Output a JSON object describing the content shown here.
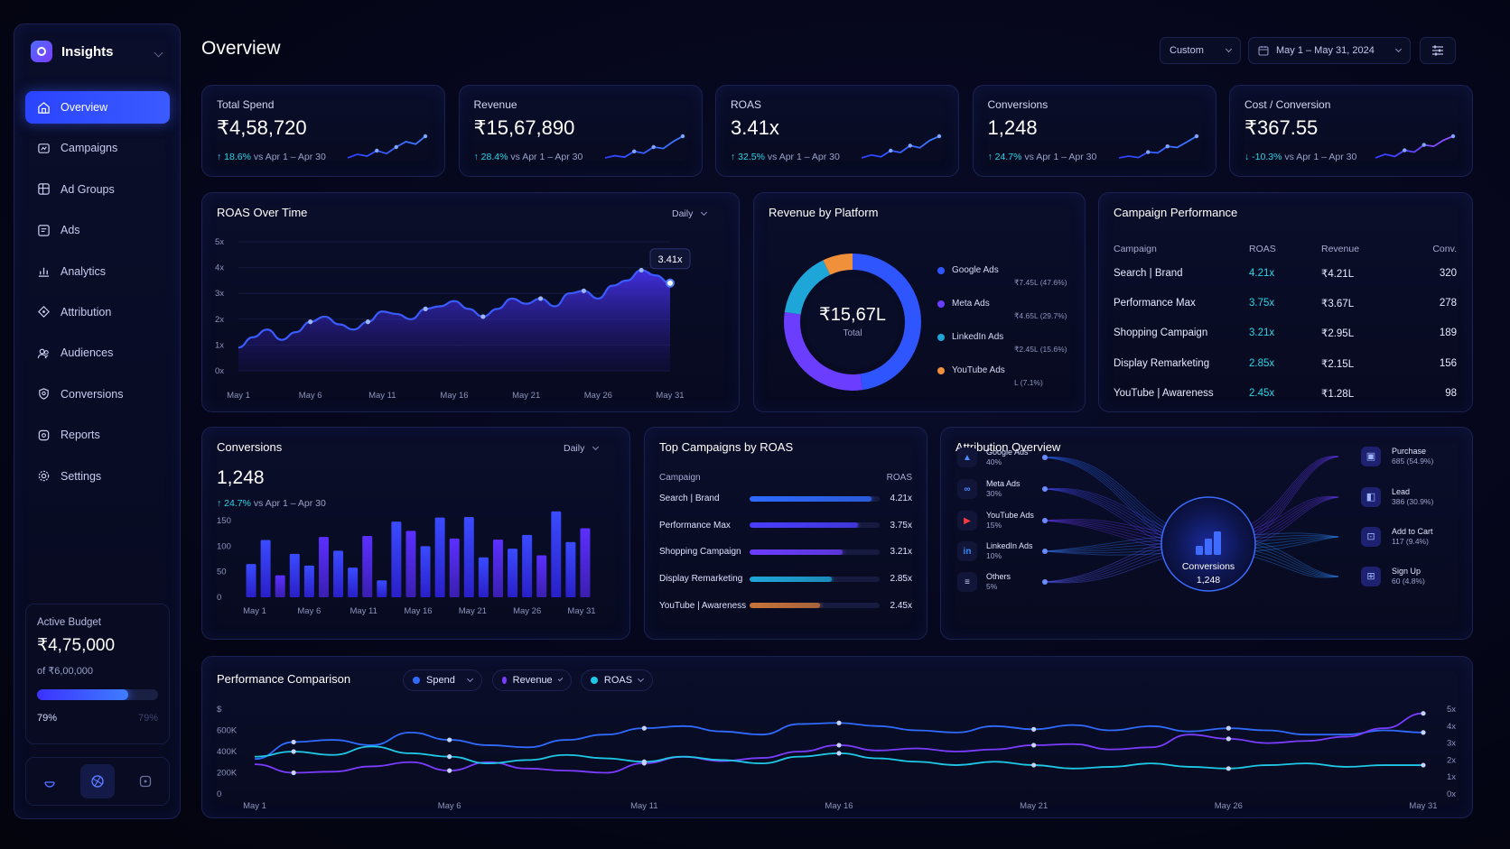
{
  "app": {
    "name": "Insights",
    "page_title": "Overview"
  },
  "sidebar": {
    "items": [
      {
        "label": "Overview",
        "icon": "home-icon",
        "active": true
      },
      {
        "label": "Campaigns",
        "icon": "campaigns-icon"
      },
      {
        "label": "Ad Groups",
        "icon": "ad-groups-icon"
      },
      {
        "label": "Ads",
        "icon": "ads-icon"
      },
      {
        "label": "Analytics",
        "icon": "analytics-icon"
      },
      {
        "label": "Attribution",
        "icon": "attribution-icon"
      },
      {
        "label": "Audiences",
        "icon": "audiences-icon"
      },
      {
        "label": "Conversions",
        "icon": "conversions-icon"
      },
      {
        "label": "Reports",
        "icon": "reports-icon"
      },
      {
        "label": "Settings",
        "icon": "gear-icon"
      }
    ],
    "budget": {
      "label": "Active Budget",
      "value": "₹4,75,000",
      "of": "of ₹6,00,000",
      "percent_text": "79%",
      "percent": 0.79,
      "right_text": "79%"
    }
  },
  "header": {
    "range_preset": "Custom",
    "date_range": "May 1 – May 31, 2024"
  },
  "kpis": [
    {
      "title": "Total Spend",
      "value": "₹4,58,720",
      "delta": "18.6%",
      "arrow": "↑",
      "compare": "vs Apr 1 – Apr 30",
      "spark": [
        2,
        3,
        2.5,
        4,
        3.2,
        5,
        6.5,
        5.8,
        8
      ]
    },
    {
      "title": "Revenue",
      "value": "₹15,67,890",
      "delta": "28.4%",
      "arrow": "↑",
      "compare": "vs Apr 1 – Apr 30",
      "spark": [
        2,
        2.6,
        2.2,
        3.8,
        3.3,
        5,
        4.6,
        6.5,
        8
      ]
    },
    {
      "title": "ROAS",
      "value": "3.41x",
      "delta": "32.5%",
      "arrow": "↑",
      "compare": "vs Apr 1 – Apr 30",
      "spark": [
        2,
        2.8,
        2.3,
        4,
        3.5,
        5.4,
        4.8,
        6.8,
        8
      ]
    },
    {
      "title": "Conversions",
      "value": "1,248",
      "delta": "24.7%",
      "arrow": "↑",
      "compare": "vs Apr 1 – Apr 30",
      "spark": [
        2,
        2.5,
        2.1,
        3.6,
        3.4,
        5.2,
        4.9,
        6.4,
        8
      ]
    },
    {
      "title": "Cost / Conversion",
      "value": "₹367.55",
      "delta": "-10.3%",
      "arrow": "↓",
      "compare": "vs Apr 1 – Apr 30",
      "spark": [
        2,
        3,
        2.4,
        4.1,
        3.6,
        5.6,
        5.2,
        6.9,
        8
      ]
    }
  ],
  "roas_chart": {
    "title": "ROAS Over Time",
    "granularity": "Daily",
    "callout": "3.41x"
  },
  "revenue_platform": {
    "title": "Revenue by Platform",
    "total": "₹15,67L",
    "total_label": "Total",
    "platforms": [
      {
        "name": "Google Ads",
        "value": "₹7.45L (47.6%)",
        "color": "#2f55ff",
        "share": 47.6
      },
      {
        "name": "Meta Ads",
        "value": "₹4.65L (29.7%)",
        "color": "#6b3dff",
        "share": 29.7
      },
      {
        "name": "LinkedIn Ads",
        "value": "₹2.45L (15.6%)",
        "color": "#1ea6d8",
        "share": 15.6
      },
      {
        "name": "YouTube Ads",
        "value": "L (7.1%)",
        "color": "#f0903a",
        "share": 7.1
      }
    ]
  },
  "campaign_performance": {
    "title": "Campaign Performance",
    "headers": [
      "Campaign",
      "ROAS",
      "Revenue",
      "Conv."
    ],
    "rows": [
      [
        "Search | Brand",
        "4.21x",
        "₹4.21L",
        "320"
      ],
      [
        "Performance Max",
        "3.75x",
        "₹3.67L",
        "278"
      ],
      [
        "Shopping Campaign",
        "3.21x",
        "₹2.95L",
        "189"
      ],
      [
        "Display Remarketing",
        "2.85x",
        "₹2.15L",
        "156"
      ],
      [
        "YouTube | Awareness",
        "2.45x",
        "₹1.28L",
        "98"
      ]
    ]
  },
  "conversions": {
    "title": "Conversions",
    "granularity": "Daily",
    "value": "1,248",
    "delta": "24.7%",
    "arrow": "↑",
    "compare": "vs Apr 1 – Apr 30"
  },
  "top_campaigns": {
    "title": "Top Campaigns by ROAS",
    "col1": "Campaign",
    "col2": "ROAS",
    "rows": [
      {
        "name": "Search | Brand",
        "roas": "4.21x",
        "value": 4.21,
        "color": "#2f6bff"
      },
      {
        "name": "Performance Max",
        "roas": "3.75x",
        "value": 3.75,
        "color": "#4a3dff"
      },
      {
        "name": "Shopping Campaign",
        "roas": "3.21x",
        "value": 3.21,
        "color": "#6b3dff"
      },
      {
        "name": "Display Remarketing",
        "roas": "2.85x",
        "value": 2.85,
        "color": "#1ea6d8"
      },
      {
        "name": "YouTube | Awareness",
        "roas": "2.45x",
        "value": 2.45,
        "color": "#c8743a"
      }
    ]
  },
  "attribution": {
    "title": "Attribution Overview",
    "center_label": "Conversions",
    "center_value": "1,248",
    "sources": [
      {
        "name": "Google Ads",
        "share": "40%",
        "icon": "google-ads-icon"
      },
      {
        "name": "Meta Ads",
        "share": "30%",
        "icon": "meta-icon"
      },
      {
        "name": "YouTube Ads",
        "share": "15%",
        "icon": "youtube-icon"
      },
      {
        "name": "LinkedIn Ads",
        "share": "10%",
        "icon": "linkedin-icon"
      },
      {
        "name": "Others",
        "share": "5%",
        "icon": "others-icon"
      }
    ],
    "outcomes": [
      {
        "name": "Purchase",
        "value": "685 (54.9%)",
        "icon": "purchase-icon"
      },
      {
        "name": "Lead",
        "value": "386 (30.9%)",
        "icon": "lead-icon"
      },
      {
        "name": "Add to Cart",
        "value": "117 (9.4%)",
        "icon": "cart-icon"
      },
      {
        "name": "Sign Up",
        "value": "60 (4.8%)",
        "icon": "signup-icon"
      }
    ]
  },
  "performance": {
    "title": "Performance Comparison",
    "filters": [
      {
        "label": "Spend",
        "color": "#2f6bff"
      },
      {
        "label": "Revenue",
        "color": "#7a3dff"
      },
      {
        "label": "ROAS",
        "color": "#1ec8e6"
      }
    ]
  },
  "chart_data": [
    {
      "type": "area",
      "title": "ROAS Over Time",
      "x": [
        "May 1",
        "May 2",
        "May 3",
        "May 4",
        "May 5",
        "May 6",
        "May 7",
        "May 8",
        "May 9",
        "May 10",
        "May 11",
        "May 12",
        "May 13",
        "May 14",
        "May 15",
        "May 16",
        "May 17",
        "May 18",
        "May 19",
        "May 20",
        "May 21",
        "May 22",
        "May 23",
        "May 24",
        "May 25",
        "May 26",
        "May 27",
        "May 28",
        "May 29",
        "May 30",
        "May 31"
      ],
      "xticks": [
        "May 1",
        "May 6",
        "May 11",
        "May 16",
        "May 21",
        "May 26",
        "May 31"
      ],
      "yticks": [
        "0x",
        "1x",
        "2x",
        "3x",
        "4x",
        "5x"
      ],
      "ylim": [
        0,
        5
      ],
      "values": [
        0.9,
        1.3,
        1.6,
        1.2,
        1.5,
        1.9,
        2.1,
        1.8,
        1.6,
        1.9,
        2.3,
        2.2,
        2.0,
        2.4,
        2.5,
        2.7,
        2.4,
        2.1,
        2.4,
        2.8,
        2.6,
        2.8,
        2.5,
        3.0,
        3.1,
        2.8,
        3.3,
        3.5,
        3.9,
        3.7,
        3.4
      ],
      "highlight": {
        "x": "May 31",
        "label": "3.41x"
      }
    },
    {
      "type": "pie",
      "title": "Revenue by Platform",
      "labels": [
        "Google Ads",
        "Meta Ads",
        "LinkedIn Ads",
        "YouTube Ads"
      ],
      "values": [
        47.6,
        29.7,
        15.6,
        7.1
      ]
    },
    {
      "type": "bar",
      "title": "Conversions",
      "xticks": [
        "May 1",
        "May 6",
        "May 11",
        "May 16",
        "May 21",
        "May 26",
        "May 31"
      ],
      "yticks": [
        "0",
        "50",
        "100",
        "150"
      ],
      "ylim": [
        0,
        170
      ],
      "values": [
        65,
        112,
        43,
        85,
        62,
        118,
        91,
        58,
        120,
        33,
        148,
        130,
        100,
        156,
        115,
        157,
        78,
        113,
        95,
        122,
        82,
        168,
        108,
        135
      ]
    },
    {
      "type": "line",
      "title": "Performance Comparison",
      "xticks": [
        "May 1",
        "May 6",
        "May 11",
        "May 16",
        "May 21",
        "May 26",
        "May 31"
      ],
      "yticks_left": [
        "0",
        "200K",
        "400K",
        "600K",
        "$"
      ],
      "yticks_right": [
        "0x",
        "1x",
        "2x",
        "3x",
        "4x",
        "5x"
      ],
      "series": [
        {
          "name": "Spend",
          "values": [
            330,
            490,
            510,
            460,
            580,
            510,
            460,
            440,
            510,
            560,
            620,
            640,
            590,
            560,
            660,
            670,
            640,
            600,
            580,
            640,
            610,
            650,
            600,
            640,
            590,
            620,
            600,
            560,
            560,
            600,
            580
          ]
        },
        {
          "name": "Revenue",
          "values": [
            280,
            200,
            210,
            260,
            300,
            220,
            300,
            240,
            220,
            200,
            290,
            350,
            310,
            340,
            400,
            460,
            410,
            430,
            400,
            420,
            460,
            470,
            420,
            440,
            560,
            520,
            480,
            500,
            540,
            620,
            760
          ]
        },
        {
          "name": "ROAS",
          "values": [
            2.2,
            2.5,
            2.3,
            2.8,
            2.4,
            2.2,
            1.8,
            2.0,
            2.3,
            2.1,
            1.9,
            2.2,
            2.0,
            1.8,
            2.2,
            2.4,
            2.1,
            1.9,
            1.7,
            1.9,
            1.7,
            1.5,
            1.6,
            1.8,
            1.6,
            1.5,
            1.7,
            1.8,
            1.6,
            1.7,
            1.7
          ]
        }
      ]
    }
  ]
}
